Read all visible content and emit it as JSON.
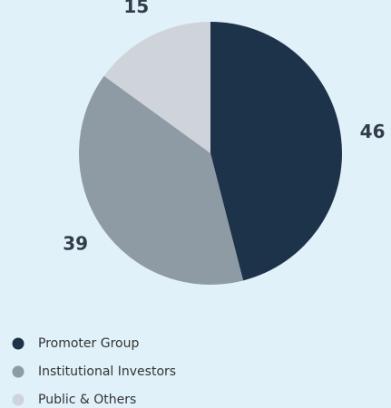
{
  "chart_data": {
    "type": "pie",
    "categories": [
      "Promoter Group",
      "Institutional Investors",
      "Public & Others"
    ],
    "values": [
      46,
      39,
      15
    ],
    "colors": [
      "#1d3349",
      "#8e9aa4",
      "#cfd3da"
    ],
    "legend": "bottom-left"
  }
}
